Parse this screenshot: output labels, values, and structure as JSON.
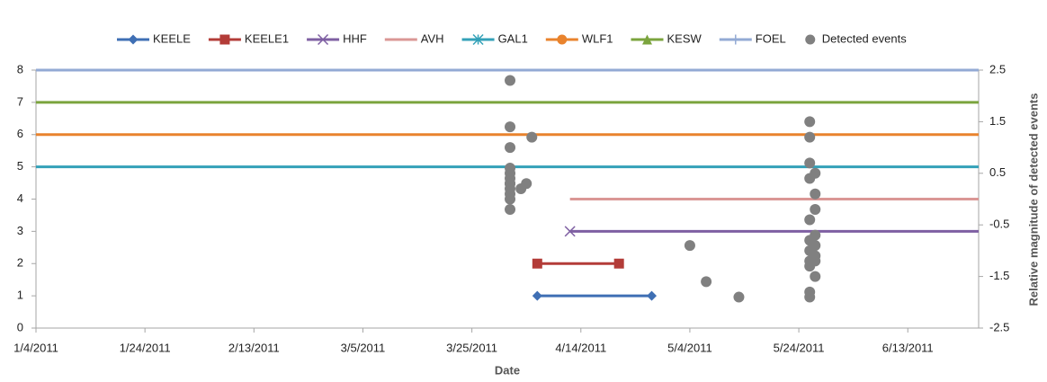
{
  "chart_data": {
    "type": "line",
    "x_label": "Date",
    "y2_label": "Relative magnitude of detected events",
    "xlim": [
      "1/4/2011",
      "6/26/2011"
    ],
    "xticks": [
      "1/4/2011",
      "1/24/2011",
      "2/13/2011",
      "3/5/2011",
      "3/25/2011",
      "4/14/2011",
      "5/4/2011",
      "5/24/2011",
      "6/13/2011"
    ],
    "ylim": [
      0,
      8
    ],
    "yticks": [
      0,
      1,
      2,
      3,
      4,
      5,
      6,
      7,
      8
    ],
    "y2lim": [
      -2.5,
      2.5
    ],
    "y2ticks": [
      2.5,
      1.5,
      0.5,
      -0.5,
      -1.5,
      -2.5
    ],
    "legend": "top",
    "series": [
      {
        "name": "KEELE",
        "color": "#3f6fb4",
        "marker": "diamond",
        "x": [
          "4/6/2011",
          "4/27/2011"
        ],
        "values": [
          1,
          1
        ]
      },
      {
        "name": "KEELE1",
        "color": "#b33c38",
        "marker": "square",
        "x": [
          "4/6/2011",
          "4/21/2011"
        ],
        "values": [
          2,
          2
        ]
      },
      {
        "name": "HHF",
        "color": "#7e5fa2",
        "marker": "x",
        "x": [
          "4/12/2011",
          "7/1/2011"
        ],
        "values": [
          3,
          3
        ]
      },
      {
        "name": "AVH",
        "color": "#da9795",
        "marker": "none",
        "x": [
          "4/12/2011",
          "7/1/2011"
        ],
        "values": [
          4,
          4
        ]
      },
      {
        "name": "GAL1",
        "color": "#33a1b8",
        "marker": "star",
        "x": [
          "1/1/2011",
          "7/1/2011"
        ],
        "values": [
          5,
          5
        ]
      },
      {
        "name": "WLF1",
        "color": "#e9832d",
        "marker": "circle",
        "x": [
          "1/1/2011",
          "7/1/2011"
        ],
        "values": [
          6,
          6
        ]
      },
      {
        "name": "KESW",
        "color": "#7ba43e",
        "marker": "triangle",
        "x": [
          "1/1/2011",
          "7/1/2011"
        ],
        "values": [
          7,
          7
        ]
      },
      {
        "name": "FOEL",
        "color": "#93aad4",
        "marker": "plus",
        "x": [
          "1/1/2011",
          "7/1/2011"
        ],
        "values": [
          8,
          8
        ]
      },
      {
        "name": "Detected events",
        "type": "scatter",
        "axis": "y2",
        "color": "#808080",
        "x": [
          "4/1/2011",
          "4/1/2011",
          "4/1/2011",
          "4/1/2011",
          "4/1/2011",
          "4/1/2011",
          "4/1/2011",
          "4/1/2011",
          "4/1/2011",
          "4/1/2011",
          "4/1/2011",
          "4/1/2011",
          "4/3/2011",
          "4/4/2011",
          "4/5/2011",
          "5/4/2011",
          "5/7/2011",
          "5/13/2011",
          "5/26/2011",
          "5/26/2011",
          "5/26/2011",
          "5/27/2011",
          "5/26/2011",
          "5/27/2011",
          "5/27/2011",
          "5/26/2011",
          "5/27/2011",
          "5/26/2011",
          "5/27/2011",
          "5/26/2011",
          "5/27/2011",
          "5/26/2011",
          "5/27/2011",
          "5/26/2011",
          "5/27/2011",
          "5/26/2011",
          "5/26/2011"
        ],
        "values": [
          2.3,
          1.4,
          1.0,
          0.6,
          0.5,
          0.4,
          0.3,
          0.3,
          0.2,
          0.1,
          0.0,
          -0.2,
          0.2,
          0.3,
          1.2,
          -0.9,
          -1.6,
          -1.9,
          1.5,
          1.2,
          0.7,
          0.5,
          0.4,
          0.1,
          -0.2,
          -0.4,
          -0.7,
          -0.8,
          -0.9,
          -1.0,
          -1.1,
          -1.2,
          -1.2,
          -1.3,
          -1.5,
          -1.8,
          -1.9
        ]
      }
    ]
  }
}
